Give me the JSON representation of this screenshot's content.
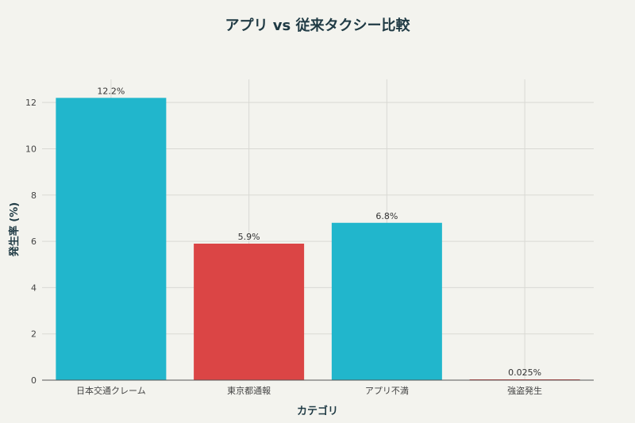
{
  "chart_data": {
    "type": "bar",
    "title": "アプリ vs 従来タクシー比較",
    "xlabel": "カテゴリ",
    "ylabel": "発生率 (%)",
    "categories": [
      "日本交通クレーム",
      "東京都通報",
      "アプリ不満",
      "強盗発生"
    ],
    "values": [
      12.2,
      5.9,
      6.8,
      0.025
    ],
    "data_labels": [
      "12.2%",
      "5.9%",
      "6.8%",
      "0.025%"
    ],
    "bar_colors": [
      "#21b6cc",
      "#db4545",
      "#21b6cc",
      "#db4545"
    ],
    "yticks": [
      0,
      2,
      4,
      6,
      8,
      10,
      12
    ],
    "ylim": [
      0,
      13
    ],
    "grid": true
  }
}
